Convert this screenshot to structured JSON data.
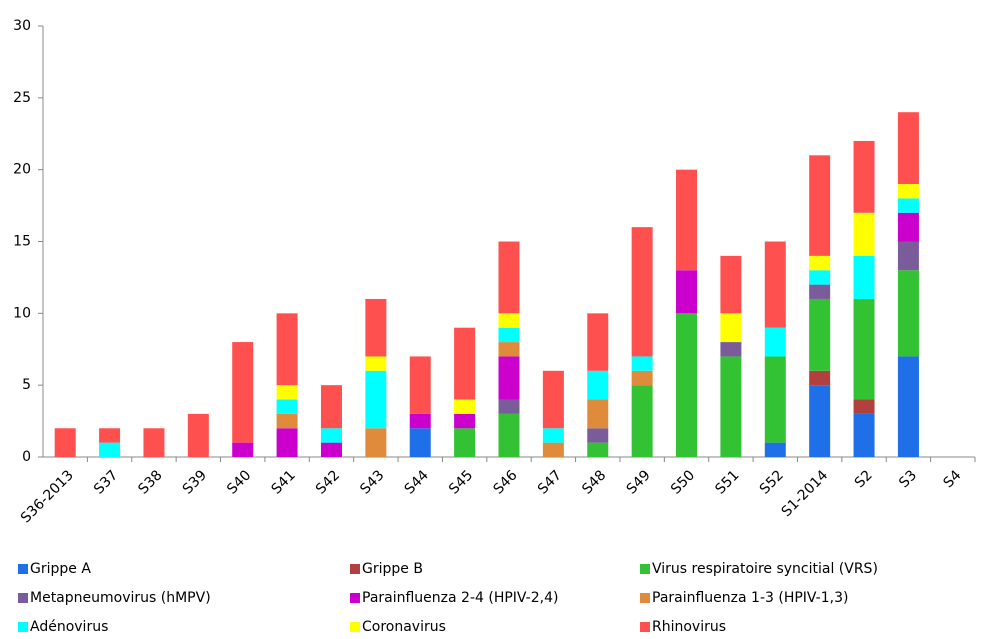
{
  "chart_data": {
    "type": "stacked-bar",
    "categories": [
      "S36-2013",
      "S37",
      "S38",
      "S39",
      "S40",
      "S41",
      "S42",
      "S43",
      "S44",
      "S45",
      "S46",
      "S47",
      "S48",
      "S49",
      "S50",
      "S51",
      "S52",
      "S1-2014",
      "S2",
      "S3",
      "S4"
    ],
    "series": [
      {
        "name": "Grippe A",
        "color": "#1f6fe8",
        "values": [
          0,
          0,
          0,
          0,
          0,
          0,
          0,
          0,
          2,
          0,
          0,
          0,
          0,
          0,
          0,
          0,
          1,
          5,
          3,
          7,
          0
        ]
      },
      {
        "name": "Grippe B",
        "color": "#b0413e",
        "values": [
          0,
          0,
          0,
          0,
          0,
          0,
          0,
          0,
          0,
          0,
          0,
          0,
          0,
          0,
          0,
          0,
          0,
          1,
          1,
          0,
          0
        ]
      },
      {
        "name": "Virus respiratoire syncitial (VRS)",
        "color": "#33c233",
        "values": [
          0,
          0,
          0,
          0,
          0,
          0,
          0,
          0,
          0,
          2,
          3,
          0,
          1,
          5,
          10,
          7,
          6,
          5,
          7,
          6,
          0
        ]
      },
      {
        "name": "Metapneumovirus (hMPV)",
        "color": "#7a5c9a",
        "values": [
          0,
          0,
          0,
          0,
          0,
          0,
          0,
          0,
          0,
          0,
          1,
          0,
          1,
          0,
          0,
          1,
          0,
          1,
          0,
          2,
          0
        ]
      },
      {
        "name": "Parainfluenza 2-4 (HPIV-2,4)",
        "color": "#cc00cc",
        "values": [
          0,
          0,
          0,
          0,
          1,
          2,
          1,
          0,
          1,
          1,
          3,
          0,
          0,
          0,
          3,
          0,
          0,
          0,
          0,
          2,
          0
        ]
      },
      {
        "name": "Parainfluenza 1-3 (HPIV-1,3)",
        "color": "#e08a3c",
        "values": [
          0,
          0,
          0,
          0,
          0,
          1,
          0,
          2,
          0,
          0,
          1,
          1,
          2,
          1,
          0,
          0,
          0,
          0,
          0,
          0,
          0
        ]
      },
      {
        "name": "Adénovirus",
        "color": "#00ffff",
        "values": [
          0,
          1,
          0,
          0,
          0,
          1,
          1,
          4,
          0,
          0,
          1,
          1,
          2,
          1,
          0,
          0,
          2,
          1,
          3,
          1,
          0
        ]
      },
      {
        "name": "Coronavirus",
        "color": "#ffff00",
        "values": [
          0,
          0,
          0,
          0,
          0,
          1,
          0,
          1,
          0,
          1,
          1,
          0,
          0,
          0,
          0,
          2,
          0,
          1,
          3,
          1,
          0
        ]
      },
      {
        "name": "Rhinovirus",
        "color": "#ff5050",
        "values": [
          2,
          1,
          2,
          3,
          7,
          5,
          3,
          4,
          4,
          5,
          5,
          4,
          4,
          9,
          7,
          4,
          6,
          7,
          5,
          5,
          0
        ]
      }
    ],
    "ylim": [
      0,
      30
    ],
    "yticks": [
      0,
      5,
      10,
      15,
      20,
      25,
      30
    ]
  }
}
